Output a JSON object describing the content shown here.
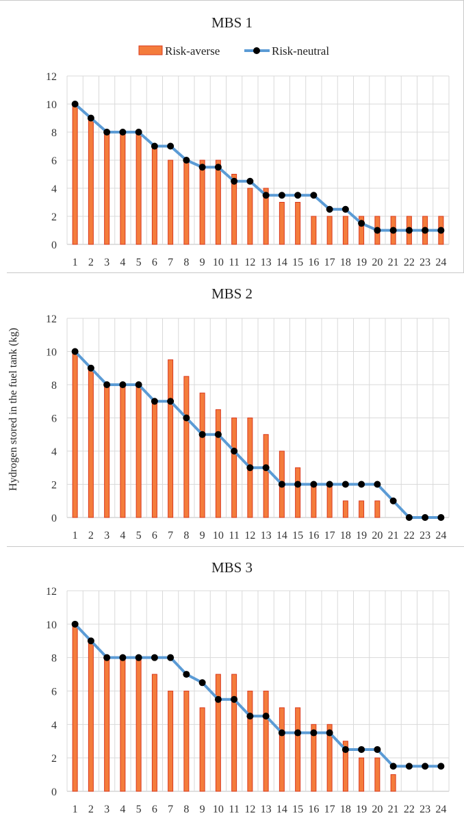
{
  "y_axis_label": "Hydrogen stored in the fuel tank (kg)",
  "legend": {
    "bar_label": "Risk-averse",
    "line_label": "Risk-neutral"
  },
  "colors": {
    "bar_fill": "#f47c3c",
    "bar_stroke": "#d9381e",
    "line": "#5b9bd5",
    "marker": "#000000",
    "grid": "#d9d9d9"
  },
  "chart_data": [
    {
      "type": "bar",
      "title": "MBS 1",
      "categories": [
        "1",
        "2",
        "3",
        "4",
        "5",
        "6",
        "7",
        "8",
        "9",
        "10",
        "11",
        "12",
        "13",
        "14",
        "15",
        "16",
        "17",
        "18",
        "19",
        "20",
        "21",
        "22",
        "23",
        "24"
      ],
      "ylim": [
        0,
        12
      ],
      "yticks": [
        0,
        2,
        4,
        6,
        8,
        10,
        12
      ],
      "grid": true,
      "legend_position": "top",
      "series": [
        {
          "name": "Risk-averse",
          "type": "bar",
          "values": [
            10,
            9,
            8,
            8,
            8,
            7,
            6,
            6,
            6,
            6,
            5,
            4,
            4,
            3,
            3,
            2,
            2,
            2,
            2,
            2,
            2,
            2,
            2,
            2
          ]
        },
        {
          "name": "Risk-neutral",
          "type": "line",
          "values": [
            10,
            9,
            8,
            8,
            8,
            7,
            7,
            6,
            5.5,
            5.5,
            4.5,
            4.5,
            3.5,
            3.5,
            3.5,
            3.5,
            2.5,
            2.5,
            1.5,
            1,
            1,
            1,
            1,
            1
          ]
        }
      ]
    },
    {
      "type": "bar",
      "title": "MBS 2",
      "categories": [
        "1",
        "2",
        "3",
        "4",
        "5",
        "6",
        "7",
        "8",
        "9",
        "10",
        "11",
        "12",
        "13",
        "14",
        "15",
        "16",
        "17",
        "18",
        "19",
        "20",
        "21",
        "22",
        "23",
        "24"
      ],
      "ylim": [
        0,
        12
      ],
      "yticks": [
        0,
        2,
        4,
        6,
        8,
        10,
        12
      ],
      "grid": true,
      "series": [
        {
          "name": "Risk-averse",
          "type": "bar",
          "values": [
            10,
            9,
            8,
            8,
            8,
            7,
            9.5,
            8.5,
            7.5,
            6.5,
            6,
            6,
            5,
            4,
            3,
            2,
            2,
            1,
            1,
            1,
            0,
            0,
            0,
            0
          ]
        },
        {
          "name": "Risk-neutral",
          "type": "line",
          "values": [
            10,
            9,
            8,
            8,
            8,
            7,
            7,
            6,
            5,
            5,
            4,
            3,
            3,
            2,
            2,
            2,
            2,
            2,
            2,
            2,
            1,
            0,
            0,
            0
          ]
        }
      ]
    },
    {
      "type": "bar",
      "title": "MBS 3",
      "categories": [
        "1",
        "2",
        "3",
        "4",
        "5",
        "6",
        "7",
        "8",
        "9",
        "10",
        "11",
        "12",
        "13",
        "14",
        "15",
        "16",
        "17",
        "18",
        "19",
        "20",
        "21",
        "22",
        "23",
        "24"
      ],
      "ylim": [
        0,
        12
      ],
      "yticks": [
        0,
        2,
        4,
        6,
        8,
        10,
        12
      ],
      "grid": true,
      "series": [
        {
          "name": "Risk-averse",
          "type": "bar",
          "values": [
            10,
            9,
            8,
            8,
            8,
            7,
            6,
            6,
            5,
            7,
            7,
            6,
            6,
            5,
            5,
            4,
            4,
            3,
            2,
            2,
            1,
            0,
            0,
            0
          ]
        },
        {
          "name": "Risk-neutral",
          "type": "line",
          "values": [
            10,
            9,
            8,
            8,
            8,
            8,
            8,
            7,
            6.5,
            5.5,
            5.5,
            4.5,
            4.5,
            3.5,
            3.5,
            3.5,
            3.5,
            2.5,
            2.5,
            2.5,
            1.5,
            1.5,
            1.5,
            1.5
          ]
        }
      ]
    }
  ]
}
